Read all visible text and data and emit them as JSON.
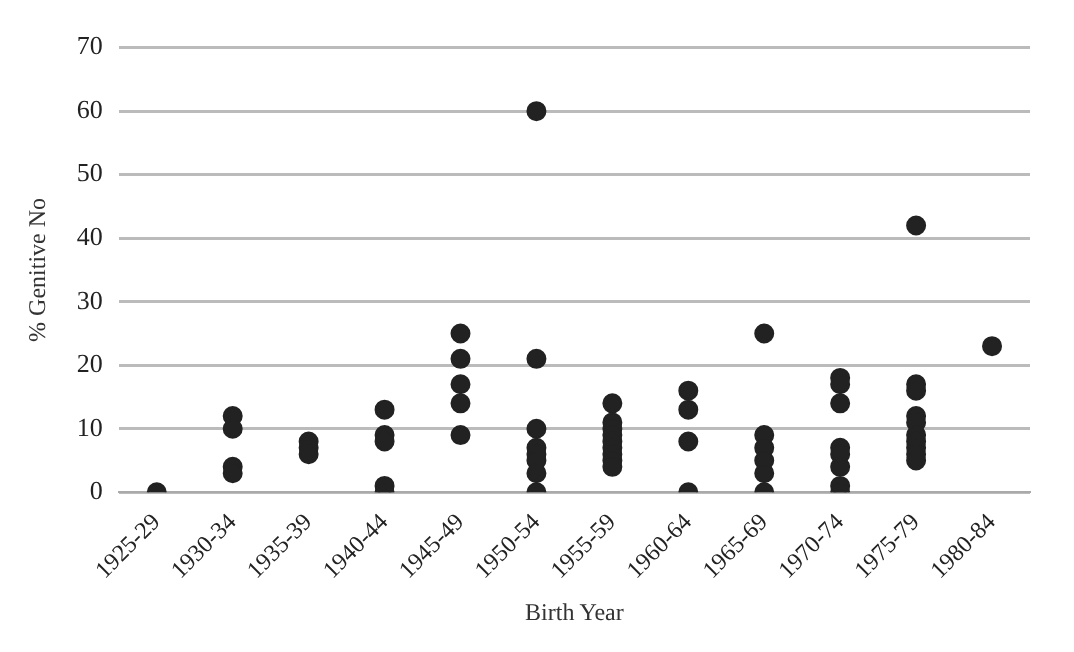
{
  "chart_data": {
    "type": "scatter",
    "xlabel": "Birth Year",
    "ylabel": "% Genitive No",
    "categories": [
      "1925-29",
      "1930-34",
      "1935-39",
      "1940-44",
      "1945-49",
      "1950-54",
      "1955-59",
      "1960-64",
      "1965-69",
      "1970-74",
      "1975-79",
      "1980-84"
    ],
    "series": [
      {
        "color": "#222222",
        "x": [
          "1925-29",
          "1930-34",
          "1930-34",
          "1930-34",
          "1930-34",
          "1935-39",
          "1935-39",
          "1935-39",
          "1940-44",
          "1940-44",
          "1940-44",
          "1940-44",
          "1940-44",
          "1945-49",
          "1945-49",
          "1945-49",
          "1945-49",
          "1945-49",
          "1950-54",
          "1950-54",
          "1950-54",
          "1950-54",
          "1950-54",
          "1950-54",
          "1950-54",
          "1950-54",
          "1955-59",
          "1955-59",
          "1955-59",
          "1955-59",
          "1955-59",
          "1955-59",
          "1955-59",
          "1955-59",
          "1955-59",
          "1960-64",
          "1960-64",
          "1960-64",
          "1960-64",
          "1965-69",
          "1965-69",
          "1965-69",
          "1965-69",
          "1965-69",
          "1965-69",
          "1970-74",
          "1970-74",
          "1970-74",
          "1970-74",
          "1970-74",
          "1970-74",
          "1970-74",
          "1970-74",
          "1975-79",
          "1975-79",
          "1975-79",
          "1975-79",
          "1975-79",
          "1975-79",
          "1975-79",
          "1975-79",
          "1975-79",
          "1975-79",
          "1980-84"
        ],
        "values": [
          0,
          12,
          10,
          4,
          3,
          8,
          7,
          6,
          13,
          9,
          8,
          1,
          0,
          25,
          21,
          17,
          14,
          9,
          60,
          21,
          10,
          7,
          6,
          5,
          3,
          0,
          14,
          11,
          10,
          9,
          8,
          7,
          6,
          5,
          4,
          16,
          13,
          8,
          0,
          25,
          9,
          7,
          5,
          3,
          0,
          18,
          17,
          14,
          7,
          6,
          4,
          1,
          0,
          42,
          17,
          16,
          12,
          11,
          9,
          8,
          7,
          6,
          5,
          23
        ]
      }
    ],
    "ylim": [
      0,
      70
    ],
    "yticks": [
      0,
      10,
      20,
      30,
      40,
      50,
      60,
      70
    ],
    "grid": "y",
    "legend": false,
    "marker": "circle"
  }
}
